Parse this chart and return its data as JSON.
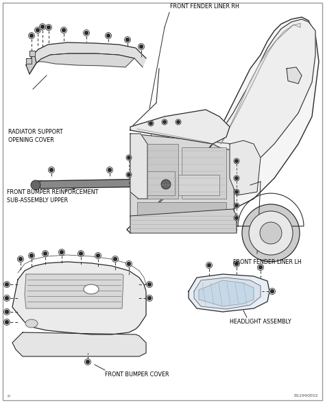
{
  "bg_color": "#ffffff",
  "border_color": "#999999",
  "line_color": "#2a2a2a",
  "text_color": "#000000",
  "labels": {
    "front_fender_liner_rh": "FRONT FENDER LINER RH",
    "radiator_support_line1": "RADIATOR SUPPORT",
    "radiator_support_line2": "OPENING COVER",
    "front_bumper_reinf_line1": "FRONT BUMPER REINFORCEMENT",
    "front_bumper_reinf_line2": "SUB-ASSEMBLY UPPER",
    "front_fender_liner_lh": "FRONT FENDER LINER LH",
    "headlight_assembly": "HEADLIGHT ASSEMBLY",
    "front_bumper_cover": "FRONT BUMPER COVER"
  },
  "small_text_bottom_left": "p",
  "small_text_bottom_right": "B12990E02",
  "font_size_label": 5.8,
  "font_size_small": 4.5
}
